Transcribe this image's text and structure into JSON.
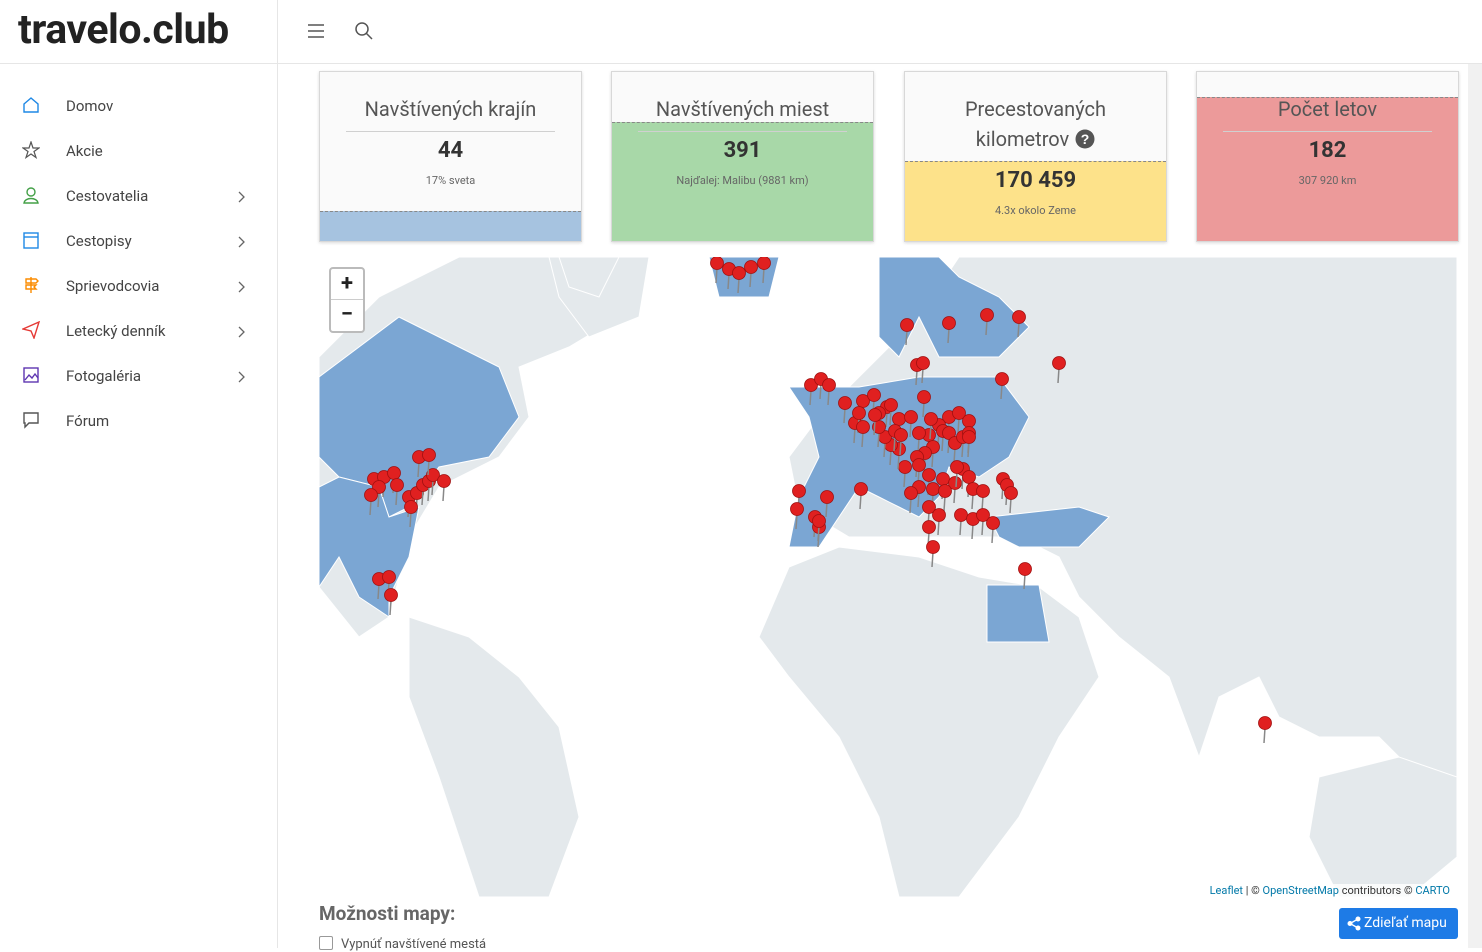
{
  "header": {
    "logo": "travelo.club"
  },
  "sidebar": {
    "items": [
      "Domov",
      "Akcie",
      "Cestovatelia",
      "Cestopisy",
      "Sprievodcovia",
      "Letecký denník",
      "Fotogaléria",
      "Fórum"
    ]
  },
  "cards": [
    {
      "title": "Navštívených krajín",
      "value": "44",
      "subtitle": "17% sveta"
    },
    {
      "title": "Navštívených miest",
      "value": "391",
      "subtitle": "Najďalej: Malibu (9881 km)"
    },
    {
      "title": "Precestovaných kilometrov",
      "value": "170 459",
      "subtitle": "4.3x okolo Zeme"
    },
    {
      "title": "Počet letov",
      "value": "182",
      "subtitle": "307 920 km"
    }
  ],
  "map": {
    "zoom": [
      "+",
      "−"
    ],
    "attribution": [
      "Leaflet",
      "| ©",
      "OpenStreetMap",
      "contributors ©",
      "CARTO"
    ]
  },
  "options": {
    "title": "Možnosti mapy:",
    "share": "Zdieľať mapu",
    "checkbox": "Vypnúť navštívené mestá"
  }
}
